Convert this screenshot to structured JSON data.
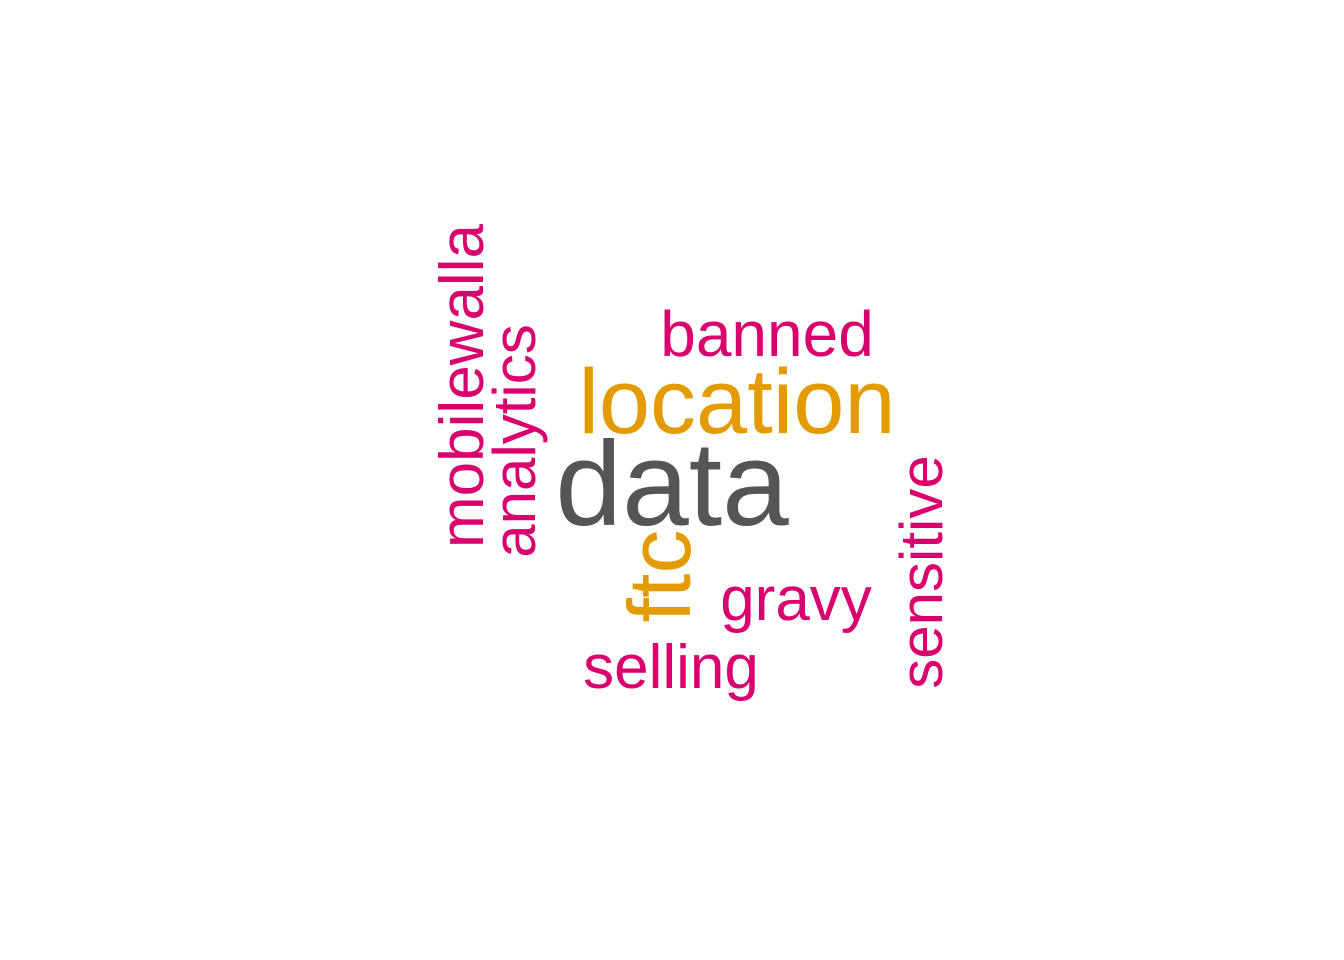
{
  "wordcloud": {
    "colors": {
      "top": "#555555",
      "mid": "#E39B00",
      "low": "#D9006E"
    },
    "words": {
      "data": "data",
      "location": "location",
      "ftc": "ftc",
      "banned": "banned",
      "mobilewalla": "mobilewalla",
      "analytics": "analytics",
      "sensitive": "sensitive",
      "gravy": "gravy",
      "selling": "selling"
    }
  }
}
